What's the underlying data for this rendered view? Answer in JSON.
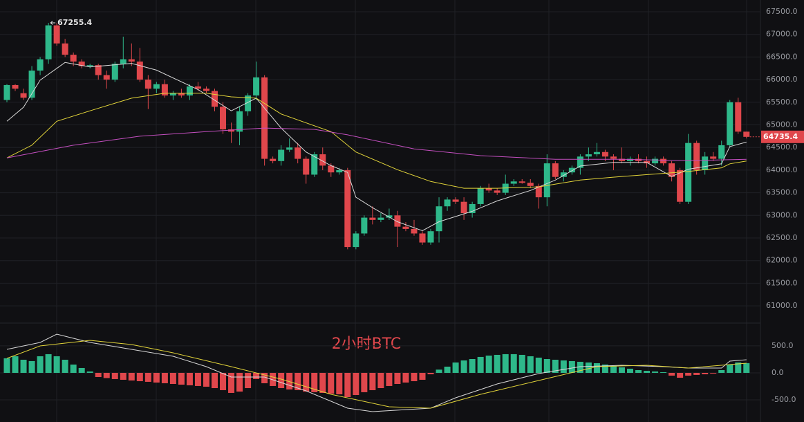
{
  "chart_data": {
    "type": "candlestick",
    "title": "2小时BTC",
    "up_color": "#2eb88a",
    "down_color": "#e0474c",
    "ylim": [
      60650,
      67760
    ],
    "yticks": [
      {
        "value": 61000,
        "label": "61000.0"
      },
      {
        "value": 61500,
        "label": "61500.0"
      },
      {
        "value": 62000,
        "label": "62000.0"
      },
      {
        "value": 62500,
        "label": "62500.0"
      },
      {
        "value": 63000,
        "label": "63000.0"
      },
      {
        "value": 63500,
        "label": "63500.0"
      },
      {
        "value": 64000,
        "label": "64000.0"
      },
      {
        "value": 64500,
        "label": "64500.0"
      },
      {
        "value": 65000,
        "label": "65000.0"
      },
      {
        "value": 65500,
        "label": "65500.0"
      },
      {
        "value": 66000,
        "label": "66000.0"
      },
      {
        "value": 66500,
        "label": "66500.0"
      },
      {
        "value": 67000,
        "label": "67000.0"
      },
      {
        "value": 67500,
        "label": "67500.0"
      }
    ],
    "candles": [
      [
        65550,
        65900,
        65500,
        65880
      ],
      [
        65880,
        65900,
        65750,
        65800
      ],
      [
        65700,
        65800,
        65550,
        65600
      ],
      [
        65600,
        66300,
        65550,
        66200
      ],
      [
        66200,
        66500,
        66100,
        66450
      ],
      [
        66450,
        67255.4,
        66350,
        67200
      ],
      [
        67200,
        67250,
        66750,
        66800
      ],
      [
        66800,
        66900,
        66500,
        66550
      ],
      [
        66550,
        66600,
        66300,
        66400
      ],
      [
        66400,
        66450,
        66250,
        66300
      ],
      [
        66300,
        66350,
        66250,
        66320
      ],
      [
        66320,
        66350,
        66000,
        66100
      ],
      [
        66100,
        66200,
        65800,
        66000
      ],
      [
        66000,
        66400,
        65950,
        66350
      ],
      [
        66350,
        66950,
        66250,
        66450
      ],
      [
        66450,
        66800,
        66300,
        66400
      ],
      [
        66400,
        66700,
        65950,
        66000
      ],
      [
        66000,
        66100,
        65350,
        65800
      ],
      [
        65800,
        65950,
        65700,
        65900
      ],
      [
        65900,
        66000,
        65600,
        65650
      ],
      [
        65650,
        65750,
        65550,
        65700
      ],
      [
        65700,
        65800,
        65600,
        65650
      ],
      [
        65650,
        65900,
        65550,
        65850
      ],
      [
        65850,
        65950,
        65750,
        65800
      ],
      [
        65800,
        65850,
        65700,
        65750
      ],
      [
        65750,
        65800,
        65300,
        65400
      ],
      [
        65400,
        65500,
        64800,
        64900
      ],
      [
        64900,
        65050,
        64600,
        64850
      ],
      [
        64850,
        65400,
        64550,
        65300
      ],
      [
        65300,
        65700,
        65200,
        65650
      ],
      [
        65650,
        66400,
        65550,
        66050
      ],
      [
        66050,
        66100,
        64100,
        64250
      ],
      [
        64250,
        64300,
        64150,
        64200
      ],
      [
        64200,
        64550,
        64100,
        64450
      ],
      [
        64450,
        64700,
        64400,
        64500
      ],
      [
        64500,
        64600,
        64150,
        64250
      ],
      [
        64250,
        64300,
        63700,
        63900
      ],
      [
        63900,
        64400,
        63850,
        64350
      ],
      [
        64350,
        64500,
        64000,
        64100
      ],
      [
        64100,
        64150,
        63850,
        63950
      ],
      [
        63950,
        64050,
        63900,
        64000
      ],
      [
        64000,
        64050,
        62250,
        62300
      ],
      [
        62300,
        62650,
        62250,
        62600
      ],
      [
        62600,
        63000,
        62550,
        62950
      ],
      [
        62950,
        63200,
        62800,
        62900
      ],
      [
        62900,
        63050,
        62850,
        62950
      ],
      [
        62950,
        63150,
        62900,
        63000
      ],
      [
        63000,
        63100,
        62300,
        62750
      ],
      [
        62750,
        62850,
        62650,
        62700
      ],
      [
        62700,
        62900,
        62550,
        62600
      ],
      [
        62600,
        62650,
        62350,
        62400
      ],
      [
        62400,
        62700,
        62350,
        62650
      ],
      [
        62650,
        63400,
        62400,
        63200
      ],
      [
        63200,
        63400,
        63100,
        63350
      ],
      [
        63350,
        63400,
        63250,
        63300
      ],
      [
        63300,
        63400,
        62900,
        63050
      ],
      [
        63050,
        63300,
        62950,
        63250
      ],
      [
        63250,
        63650,
        63200,
        63600
      ],
      [
        63600,
        63700,
        63500,
        63550
      ],
      [
        63550,
        63600,
        63450,
        63500
      ],
      [
        63500,
        63900,
        63450,
        63700
      ],
      [
        63700,
        63800,
        63650,
        63750
      ],
      [
        63750,
        63800,
        63700,
        63720
      ],
      [
        63720,
        63800,
        63600,
        63650
      ],
      [
        63650,
        63700,
        63150,
        63400
      ],
      [
        63400,
        64350,
        63200,
        64150
      ],
      [
        64150,
        64200,
        63800,
        63850
      ],
      [
        63850,
        64000,
        63750,
        63950
      ],
      [
        63950,
        64100,
        63900,
        64050
      ],
      [
        64050,
        64350,
        63900,
        64300
      ],
      [
        64300,
        64500,
        64200,
        64350
      ],
      [
        64350,
        64600,
        64300,
        64400
      ],
      [
        64400,
        64450,
        64200,
        64300
      ],
      [
        64300,
        64350,
        64000,
        64250
      ],
      [
        64250,
        64500,
        64150,
        64200
      ],
      [
        64200,
        64300,
        64100,
        64250
      ],
      [
        64250,
        64350,
        64150,
        64200
      ],
      [
        64200,
        64300,
        64050,
        64150
      ],
      [
        64150,
        64300,
        64100,
        64250
      ],
      [
        64250,
        64300,
        64100,
        64150
      ],
      [
        64150,
        64200,
        63750,
        63850
      ],
      [
        64000,
        64050,
        63250,
        63300
      ],
      [
        63300,
        64800,
        63250,
        64600
      ],
      [
        64600,
        64650,
        63900,
        64000
      ],
      [
        64000,
        64400,
        63900,
        64300
      ],
      [
        64300,
        64400,
        64200,
        64250
      ],
      [
        64250,
        64650,
        64100,
        64550
      ],
      [
        64550,
        65550,
        64500,
        65500
      ],
      [
        65500,
        65600,
        64800,
        64850
      ],
      [
        64850,
        64850,
        64700,
        64735.4
      ]
    ],
    "ma": [
      {
        "color": "#d8d8d8",
        "x": [
          0,
          2,
          4,
          7,
          10,
          15,
          18,
          23,
          27,
          30,
          33,
          36,
          39,
          41,
          42,
          44,
          47,
          50,
          52,
          56,
          59,
          63,
          66,
          69,
          73,
          77,
          80,
          82,
          86,
          87,
          89
        ],
        "values": [
          65080,
          65390,
          65990,
          66380,
          66280,
          66360,
          66210,
          65780,
          65310,
          65590,
          64930,
          64400,
          64100,
          63950,
          63400,
          63170,
          62860,
          62660,
          62860,
          63090,
          63320,
          63550,
          63780,
          64090,
          64170,
          64170,
          63860,
          64020,
          64140,
          64520,
          64620
        ]
      },
      {
        "color": "#e3d53a",
        "x": [
          0,
          3,
          6,
          10,
          15,
          19,
          24,
          27,
          30,
          33,
          39,
          42,
          47,
          51,
          55,
          59,
          64,
          69,
          74,
          80,
          82,
          86,
          87,
          89
        ],
        "values": [
          64270,
          64550,
          65080,
          65310,
          65590,
          65700,
          65700,
          65620,
          65590,
          65240,
          64850,
          64400,
          64010,
          63750,
          63600,
          63600,
          63630,
          63780,
          63860,
          63940,
          63970,
          64050,
          64140,
          64200
        ]
      },
      {
        "color": "#c44fc0",
        "x": [
          0,
          8,
          16,
          24,
          31,
          37,
          41,
          49,
          57,
          66,
          74,
          82,
          89
        ],
        "values": [
          64270,
          64550,
          64750,
          64850,
          64930,
          64900,
          64780,
          64470,
          64320,
          64240,
          64240,
          64210,
          64240
        ]
      }
    ],
    "macd": {
      "ylim": [
        -909,
        883
      ],
      "yticks": [
        {
          "value": 500,
          "label": "500.0"
        },
        {
          "value": 0,
          "label": "0.0"
        },
        {
          "value": -500,
          "label": "-500.0"
        }
      ],
      "histogram": [
        270,
        307,
        243,
        218,
        307,
        346,
        307,
        243,
        154,
        90,
        26,
        -77,
        -96,
        -115,
        -128,
        -141,
        -154,
        -166,
        -179,
        -192,
        -205,
        -218,
        -230,
        -243,
        -256,
        -282,
        -320,
        -371,
        -346,
        -282,
        -115,
        -192,
        -243,
        -282,
        -307,
        -320,
        -346,
        -358,
        -371,
        -384,
        -397,
        -448,
        -410,
        -358,
        -320,
        -282,
        -243,
        -205,
        -179,
        -154,
        -128,
        -26,
        60,
        115,
        192,
        230,
        256,
        295,
        320,
        333,
        346,
        346,
        333,
        307,
        282,
        256,
        243,
        230,
        218,
        205,
        192,
        179,
        154,
        128,
        102,
        77,
        51,
        38,
        26,
        13,
        -51,
        -90,
        -51,
        -38,
        -26,
        -13,
        51,
        154,
        192,
        180
      ],
      "lines": [
        {
          "color": "#d8d8d8",
          "x": [
            0,
            4,
            6,
            10,
            15,
            20,
            24,
            27,
            31,
            36,
            41,
            44,
            51,
            54,
            59,
            64,
            69,
            74,
            79,
            82,
            86,
            87,
            89
          ],
          "values": [
            435,
            563,
            717,
            563,
            435,
            307,
            115,
            -77,
            -77,
            -333,
            -653,
            -717,
            -653,
            -461,
            -205,
            -13,
            115,
            141,
            115,
            90,
            90,
            218,
            243
          ]
        },
        {
          "color": "#e3d53a",
          "x": [
            0,
            4,
            10,
            15,
            20,
            27,
            33,
            39,
            46,
            51,
            57,
            64,
            71,
            77,
            82,
            89
          ],
          "values": [
            269,
            499,
            602,
            525,
            371,
            115,
            -115,
            -397,
            -627,
            -653,
            -397,
            -141,
            115,
            141,
            90,
            179
          ]
        }
      ]
    }
  }
}
